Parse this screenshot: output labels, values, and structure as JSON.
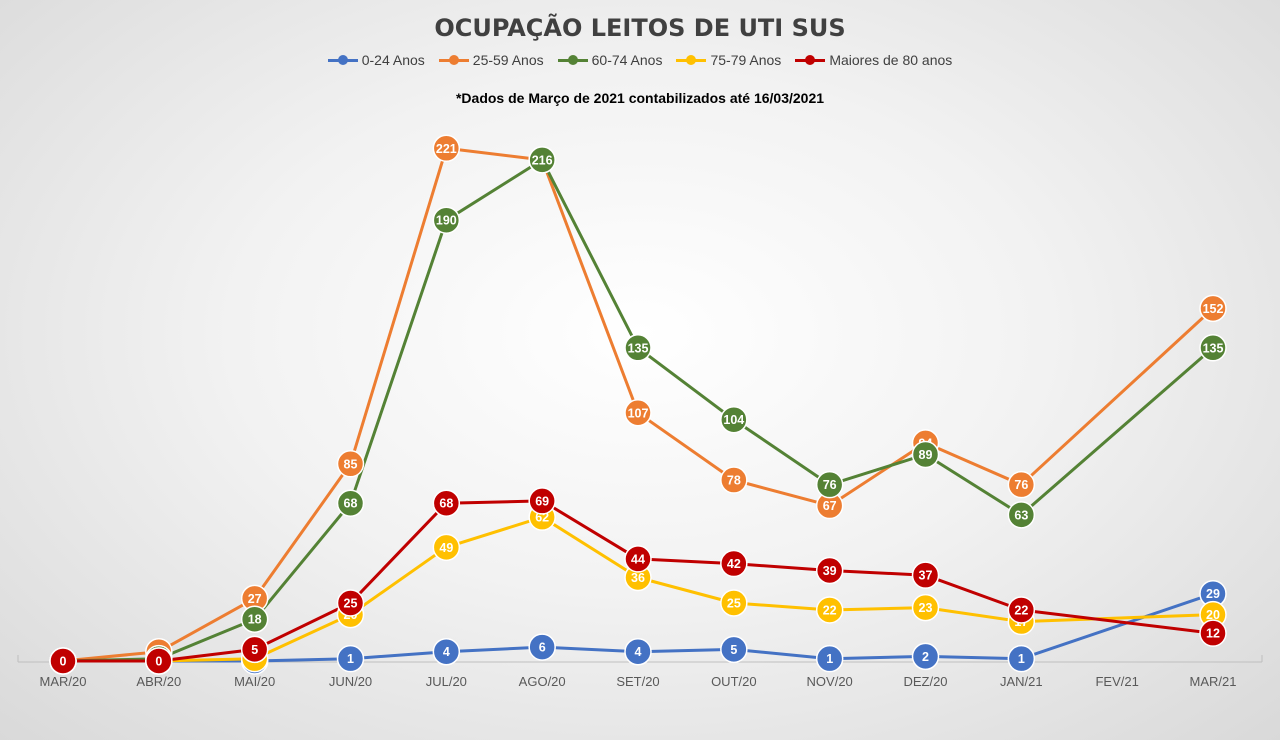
{
  "chart_data": {
    "type": "line",
    "title": "OCUPAÇÃO LEITOS DE UTI SUS",
    "subtitle": "*Dados de Março de 2021 contabilizados até 16/03/2021",
    "legend_position": "top",
    "grid": false,
    "ylim": [
      0,
      230
    ],
    "categories": [
      "MAR/20",
      "ABR/20",
      "MAI/20",
      "JUN/20",
      "JUL/20",
      "AGO/20",
      "SET/20",
      "OUT/20",
      "NOV/20",
      "DEZ/20",
      "JAN/21",
      "FEV/21",
      "MAR/21"
    ],
    "series": [
      {
        "name": "0-24 Anos",
        "color": "#4472c4",
        "values": [
          0,
          0,
          0,
          1,
          4,
          6,
          4,
          5,
          1,
          2,
          1,
          null,
          29
        ],
        "labels": [
          "0",
          "0",
          "0",
          "1",
          "4",
          "6",
          "4",
          "5",
          "1",
          "2",
          "1",
          null,
          "29"
        ]
      },
      {
        "name": "25-59 Anos",
        "color": "#ed7d31",
        "values": [
          0,
          4,
          27,
          85,
          221,
          216,
          107,
          78,
          67,
          94,
          76,
          null,
          152
        ],
        "labels": [
          "0",
          "4",
          "27",
          "85",
          "221",
          "216",
          "107",
          "78",
          "67",
          "94",
          "76",
          null,
          "152"
        ]
      },
      {
        "name": "60-74 Anos",
        "color": "#548235",
        "values": [
          0,
          1,
          18,
          68,
          190,
          216,
          135,
          104,
          76,
          89,
          63,
          null,
          135
        ],
        "labels": [
          "0",
          "1",
          "18",
          "68",
          "190",
          "216",
          "135",
          "104",
          "76",
          "89",
          "63",
          null,
          "135"
        ]
      },
      {
        "name": "75-79 Anos",
        "color": "#ffc000",
        "values": [
          0,
          0,
          1,
          20,
          49,
          62,
          36,
          25,
          22,
          23,
          17,
          null,
          20
        ],
        "labels": [
          "0",
          "0",
          "1",
          "20",
          "49",
          "62",
          "36",
          "25",
          "22",
          "23",
          "17",
          null,
          "20"
        ]
      },
      {
        "name": "Maiores de 80 anos",
        "color": "#c00000",
        "values": [
          0,
          0,
          5,
          25,
          68,
          69,
          44,
          42,
          39,
          37,
          22,
          null,
          12
        ],
        "labels": [
          "0",
          "0",
          "5",
          "25",
          "68",
          "69",
          "44",
          "42",
          "39",
          "37",
          "22",
          null,
          "12"
        ]
      }
    ]
  }
}
